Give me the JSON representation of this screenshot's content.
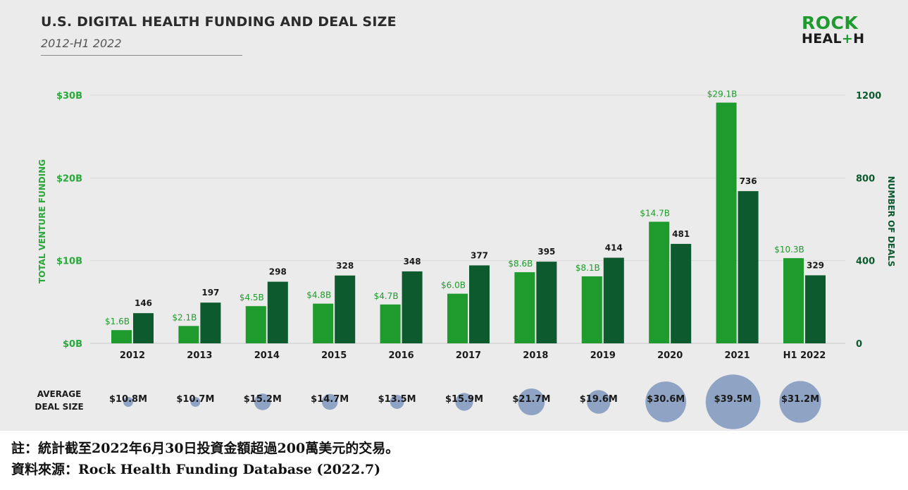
{
  "header": {
    "title": "U.S. DIGITAL HEALTH FUNDING AND DEAL SIZE",
    "subtitle": "2012-H1 2022"
  },
  "logo": {
    "line1": "ROCK",
    "line2_a": "HEAL",
    "line2_plus": "+",
    "line2_b": "H"
  },
  "colors": {
    "funding_bar": "#1f9a2c",
    "deals_bar": "#0d5a2e",
    "left_axis_text": "#2aa83a",
    "right_axis_text": "#0d5a2e",
    "bubble": "#8fa3c4",
    "panel_bg": "#ebebeb"
  },
  "chart_data": {
    "type": "bar",
    "categories": [
      "2012",
      "2013",
      "2014",
      "2015",
      "2016",
      "2017",
      "2018",
      "2019",
      "2020",
      "2021",
      "H1 2022"
    ],
    "series": [
      {
        "name": "TOTAL VENTURE FUNDING",
        "axis": "left",
        "values": [
          1.6,
          2.1,
          4.5,
          4.8,
          4.7,
          6.0,
          8.6,
          8.1,
          14.7,
          29.1,
          10.3
        ],
        "labels": [
          "$1.6B",
          "$2.1B",
          "$4.5B",
          "$4.8B",
          "$4.7B",
          "$6.0B",
          "$8.6B",
          "$8.1B",
          "$14.7B",
          "$29.1B",
          "$10.3B"
        ]
      },
      {
        "name": "NUMBER OF DEALS",
        "axis": "right",
        "values": [
          146,
          197,
          298,
          328,
          348,
          377,
          395,
          414,
          481,
          736,
          329
        ],
        "labels": [
          "146",
          "197",
          "298",
          "328",
          "348",
          "377",
          "395",
          "414",
          "481",
          "736",
          "329"
        ]
      }
    ],
    "ylabel_left": "TOTAL VENTURE FUNDING",
    "ylabel_right": "NUMBER OF DEALS",
    "ylim_left": [
      0,
      30
    ],
    "ylim_right": [
      0,
      1200
    ],
    "yticks_left": [
      0,
      10,
      20,
      30
    ],
    "ytick_labels_left": [
      "$0B",
      "$10B",
      "$20B",
      "$30B"
    ],
    "yticks_right": [
      0,
      400,
      800,
      1200
    ],
    "ytick_labels_right": [
      "0",
      "400",
      "800",
      "1200"
    ],
    "grid": true,
    "average_deal_size": {
      "label_line1": "AVERAGE",
      "label_line2": "DEAL SIZE",
      "values": [
        10.8,
        10.7,
        15.2,
        14.7,
        13.5,
        15.9,
        21.7,
        19.6,
        30.6,
        39.5,
        31.2
      ],
      "labels": [
        "$10.8M",
        "$10.7M",
        "$15.2M",
        "$14.7M",
        "$13.5M",
        "$15.9M",
        "$21.7M",
        "$19.6M",
        "$30.6M",
        "$39.5M",
        "$31.2M"
      ]
    }
  },
  "footnote": {
    "note": "註：統計截至2022年6月30日投資金額超過200萬美元的交易。",
    "source": "資料來源：Rock Health Funding Database (2022.7)"
  }
}
